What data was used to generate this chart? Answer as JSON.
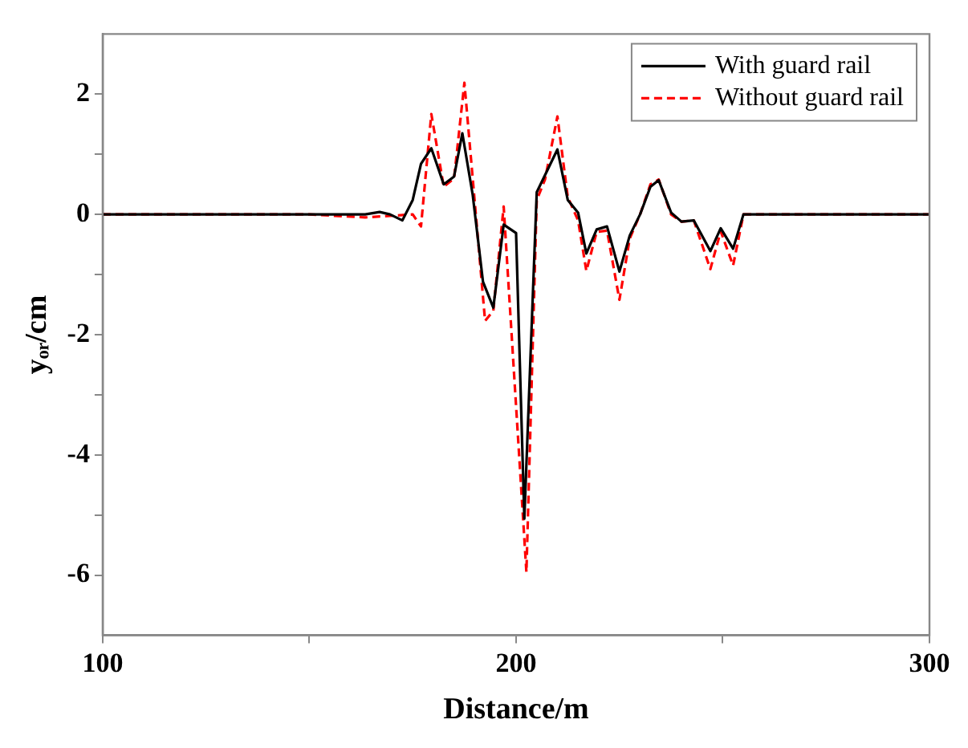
{
  "chart_data": {
    "type": "line",
    "xlabel": "Distance/m",
    "ylabel": "yₒᵣ/cm",
    "xlim": [
      100,
      300
    ],
    "xticks": [
      100,
      {
        "value": 150,
        "label": null
      },
      200,
      {
        "value": 250,
        "label": null
      },
      300
    ],
    "ylim": [
      -7,
      3
    ],
    "yticks": [
      -6,
      {
        "value": -5,
        "label": null
      },
      -4,
      {
        "value": -3,
        "label": null
      },
      -2,
      {
        "value": -1,
        "label": null
      },
      0,
      {
        "value": 1,
        "label": null
      },
      2
    ],
    "grid": false,
    "legend": "top right",
    "marker": "none",
    "series": [
      {
        "name": "With guard rail",
        "color": "#000000",
        "line_style": "solid",
        "x": [
          100,
          150,
          163.5,
          167,
          169.5,
          172.5,
          175,
          177,
          179.5,
          182.5,
          185,
          187,
          189.5,
          192,
          194.5,
          197,
          200,
          202,
          205,
          210,
          212.5,
          215,
          217,
          219.5,
          222,
          225,
          227.5,
          230,
          232.5,
          234.5,
          237.5,
          240,
          243,
          247,
          249.5,
          252.5,
          255,
          257.5,
          300
        ],
        "values": [
          0,
          0,
          0,
          0.04,
          0,
          -0.1,
          0.24,
          0.84,
          1.1,
          0.5,
          0.63,
          1.35,
          0.33,
          -1.12,
          -1.55,
          -0.17,
          -0.31,
          -5.06,
          0.37,
          1.08,
          0.24,
          0.03,
          -0.65,
          -0.25,
          -0.2,
          -0.95,
          -0.35,
          0,
          0.46,
          0.57,
          0.03,
          -0.12,
          -0.1,
          -0.61,
          -0.23,
          -0.57,
          0,
          0,
          0
        ]
      },
      {
        "name": "Without guard rail",
        "color": "#ff0000",
        "line_style": "dashed",
        "x": [
          100,
          150,
          163.5,
          175,
          177,
          179.5,
          182.5,
          185,
          187.5,
          192.5,
          194.5,
          197,
          202.5,
          205,
          207,
          210,
          212.5,
          215,
          217,
          219.5,
          222,
          225,
          227.5,
          230,
          232.5,
          234.5,
          237.5,
          240,
          243,
          247,
          249.5,
          252.5,
          255,
          257.5,
          300
        ],
        "values": [
          0,
          0,
          -0.05,
          0,
          -0.2,
          1.67,
          0.46,
          0.6,
          2.19,
          -1.77,
          -1.6,
          0.13,
          -5.95,
          0.24,
          0.58,
          1.63,
          0.29,
          -0.1,
          -0.94,
          -0.29,
          -0.27,
          -1.42,
          -0.4,
          0,
          0.5,
          0.58,
          0,
          -0.12,
          -0.1,
          -0.91,
          -0.28,
          -0.85,
          0,
          0,
          0
        ]
      }
    ]
  }
}
